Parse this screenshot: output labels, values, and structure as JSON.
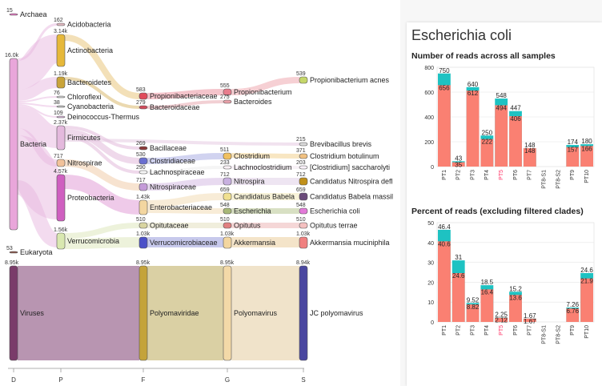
{
  "panel": {
    "title": "Escherichia coli",
    "chart1_title": "Number of reads across all samples",
    "chart2_title": "Percent of reads (excluding filtered clades)"
  },
  "colors": {
    "bar": "#fa8072",
    "bar_top": "#1ec2c2",
    "highlight_label": "#ff3366"
  },
  "sankey": {
    "levels": [
      "D",
      "P",
      "F",
      "G",
      "S"
    ],
    "nodes": [
      {
        "id": "archaea",
        "label": "Archaea",
        "value": "15",
        "color": "#e377c2"
      },
      {
        "id": "bacteria",
        "label": "Bacteria",
        "value": "16.0k",
        "color": "#e9a6da"
      },
      {
        "id": "eukaryota",
        "label": "Eukaryota",
        "value": "53",
        "color": "#8c564b"
      },
      {
        "id": "viruses",
        "label": "Viruses",
        "value": "8.95k",
        "color": "#7a3b6a"
      },
      {
        "id": "acidobacteria",
        "label": "Acidobacteria",
        "value": "162",
        "color": "#e0b8c0"
      },
      {
        "id": "actinobacteria",
        "label": "Actinobacteria",
        "value": "3.14k",
        "color": "#e6b83a"
      },
      {
        "id": "bacteroidetes",
        "label": "Bacteroidetes",
        "value": "1.19k",
        "color": "#c9a43a"
      },
      {
        "id": "chloroflexi",
        "label": "Chloroflexi",
        "value": "76",
        "color": "#d0d0d0"
      },
      {
        "id": "cyanobacteria",
        "label": "Cyanobacteria",
        "value": "38",
        "color": "#c0c0c0"
      },
      {
        "id": "deinococcus",
        "label": "Deinococcus-Thermus",
        "value": "109",
        "color": "#d6b4d6"
      },
      {
        "id": "firmicutes",
        "label": "Firmicutes",
        "value": "2.37k",
        "color": "#e4b9dd"
      },
      {
        "id": "nitrospirae",
        "label": "Nitrospirae",
        "value": "717",
        "color": "#f2c29a"
      },
      {
        "id": "proteobacteria",
        "label": "Proteobacteria",
        "value": "4.57k",
        "color": "#cf5fc0"
      },
      {
        "id": "verrucomicrobia",
        "label": "Verrucomicrobia",
        "value": "1.56k",
        "color": "#d9e8b0"
      },
      {
        "id": "polyomaviridae",
        "label": "Polyomaviridae",
        "value": "8.95k",
        "color": "#c4a33a"
      },
      {
        "id": "propionibacteriaceae",
        "label": "Propionibacteriaceae",
        "value": "583",
        "color": "#e04a5a"
      },
      {
        "id": "bacteroidaceae",
        "label": "Bacteroidaceae",
        "value": "279",
        "color": "#d04a5a"
      },
      {
        "id": "bacillaceae",
        "label": "Bacillaceae",
        "value": "269",
        "color": "#8c3a3a"
      },
      {
        "id": "clostridiaceae",
        "label": "Clostridiaceae",
        "value": "530",
        "color": "#6a6fd0"
      },
      {
        "id": "lachnospiraceae",
        "label": "Lachnospiraceae",
        "value": "290",
        "color": "#f4f4f4"
      },
      {
        "id": "nitrospiraceae",
        "label": "Nitrospiraceae",
        "value": "717",
        "color": "#c49bd8"
      },
      {
        "id": "enterobacteriaceae",
        "label": "Enterobacteriaceae",
        "value": "1.43k",
        "color": "#f3d6a0"
      },
      {
        "id": "opitutaceae",
        "label": "Opitutaceae",
        "value": "510",
        "color": "#d8d4a0"
      },
      {
        "id": "verrucomicrobiaceae",
        "label": "Verrucomicrobiaceae",
        "value": "1.03k",
        "color": "#4b50c8"
      },
      {
        "id": "polyomavirus",
        "label": "Polyomavirus",
        "value": "8.95k",
        "color": "#f3d9a8"
      },
      {
        "id": "propionibacterium",
        "label": "Propionibacterium",
        "value": "555",
        "color": "#e77c8c"
      },
      {
        "id": "bacteroides",
        "label": "Bacteroides",
        "value": "275",
        "color": "#e8a0a8"
      },
      {
        "id": "clostridium",
        "label": "Clostridium",
        "value": "511",
        "color": "#f0c060"
      },
      {
        "id": "lachnoclostridium",
        "label": "Lachnoclostridium",
        "value": "233",
        "color": "#f8f0f4"
      },
      {
        "id": "nitrospira",
        "label": "Nitrospira",
        "value": "712",
        "color": "#c8b0e0"
      },
      {
        "id": "candidatus_babela",
        "label": "Candidatus Babela",
        "value": "659",
        "color": "#f0e090"
      },
      {
        "id": "escherichia",
        "label": "Escherichia",
        "value": "548",
        "color": "#a8b878"
      },
      {
        "id": "opitutus",
        "label": "Opitutus",
        "value": "510",
        "color": "#e08080"
      },
      {
        "id": "akkermansia",
        "label": "Akkermansia",
        "value": "1.03k",
        "color": "#f3d6a0"
      },
      {
        "id": "jc_polyomavirus",
        "label": "JC polyomavirus",
        "value": "8.94k",
        "color": "#4a47a0"
      },
      {
        "id": "propionibacterium_acnes",
        "label": "Propionibacterium acnes",
        "value": "539",
        "color": "#c5d66a"
      },
      {
        "id": "brevibacillus_brevis",
        "label": "Brevibacillus brevis",
        "value": "215",
        "color": "#d8d8d8"
      },
      {
        "id": "clostridium_botulinum",
        "label": "Clostridium botulinum",
        "value": "371",
        "color": "#f0c080"
      },
      {
        "id": "clostridium_saccharolyticum",
        "label": "[Clostridium] saccharolyti",
        "value": "203",
        "color": "#f8f0f8"
      },
      {
        "id": "candidatus_nitrospira",
        "label": "Candidatus Nitrospira defl",
        "value": "712",
        "color": "#c0901a"
      },
      {
        "id": "candidatus_babela_massil",
        "label": "Candidatus Babela massil",
        "value": "659",
        "color": "#6a4a7a"
      },
      {
        "id": "escherichia_coli",
        "label": "Escherichia coli",
        "value": "548",
        "color": "#e27ad8"
      },
      {
        "id": "opitutus_terrae",
        "label": "Opitutus terrae",
        "value": "510",
        "color": "#f4c0c0"
      },
      {
        "id": "akkermansia_muciniphila",
        "label": "Akkermansia muciniphila",
        "value": "1.03k",
        "color": "#f08080"
      }
    ]
  },
  "chart_data": [
    {
      "type": "bar",
      "title": "Number of reads across all samples",
      "categories": [
        "PT1",
        "PT2",
        "PT3",
        "PT4",
        "PT5",
        "PT6",
        "PT7",
        "PT8-S1",
        "PT8-S2",
        "PT9",
        "PT10"
      ],
      "highlight": "PT5",
      "series": [
        {
          "values": [
            656,
            35,
            612,
            222,
            494,
            406,
            148,
            0,
            0,
            157,
            166
          ]
        },
        {
          "values": [
            750,
            43,
            640,
            250,
            548,
            447,
            148,
            0,
            0,
            174,
            180
          ]
        }
      ],
      "ylim": [
        0,
        800
      ],
      "yticks": [
        0,
        200,
        400,
        600,
        800
      ]
    },
    {
      "type": "bar",
      "title": "Percent of reads (excluding filtered clades)",
      "categories": [
        "PT1",
        "PT2",
        "PT3",
        "PT4",
        "PT5",
        "PT6",
        "PT7",
        "PT8-S1",
        "PT8-S2",
        "PT9",
        "PT10"
      ],
      "highlight": "PT5",
      "series": [
        {
          "values": [
            40.6,
            24.6,
            8.82,
            16.4,
            2.12,
            13.6,
            1.67,
            0,
            0,
            6.76,
            21.9
          ]
        },
        {
          "values": [
            46.4,
            31,
            9.52,
            18.5,
            2.25,
            15.2,
            1.67,
            0,
            0,
            7.26,
            24.6
          ]
        }
      ],
      "ylim": [
        0,
        50
      ],
      "yticks": [
        0,
        10,
        20,
        30,
        40,
        50
      ]
    }
  ]
}
